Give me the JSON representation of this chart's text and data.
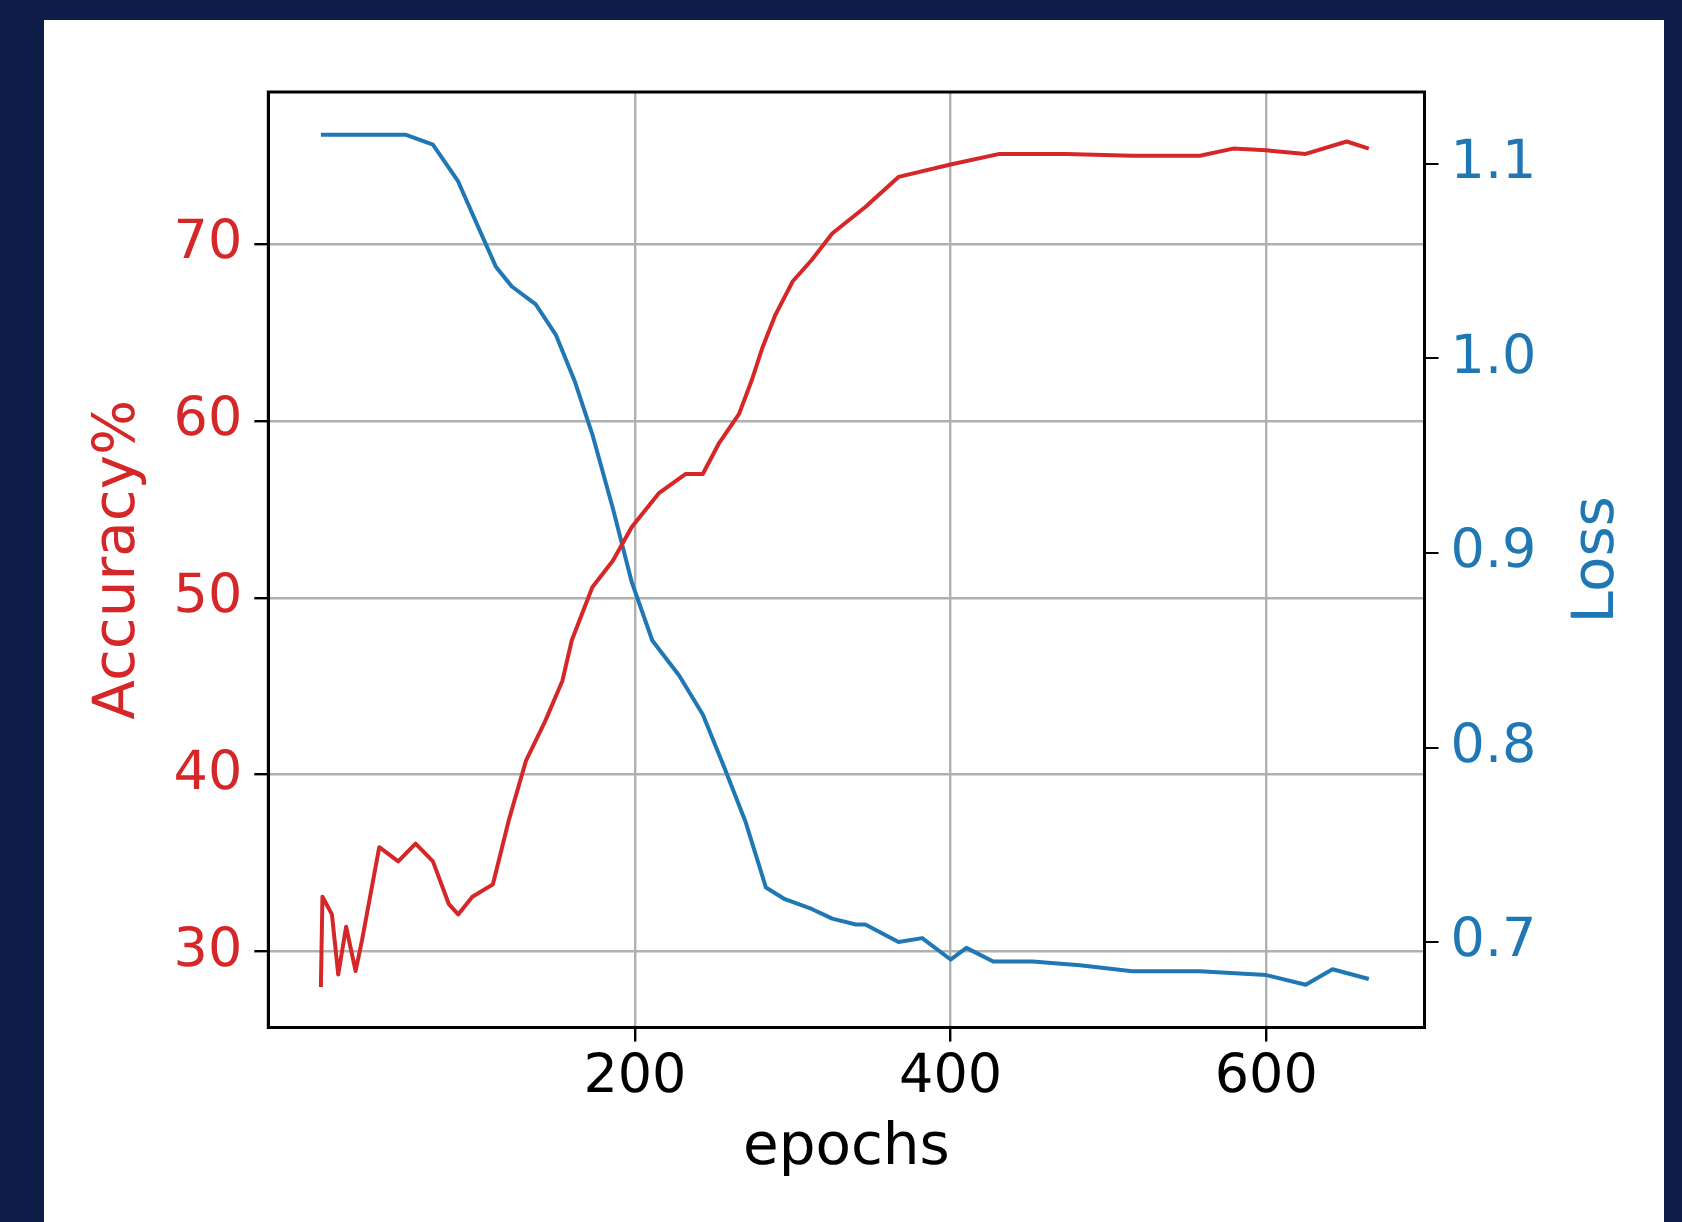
{
  "chart_data": {
    "type": "line",
    "xlabel": "epochs",
    "ylabel": "Accuracy%",
    "y2label": "Loss",
    "xlim": [
      -32.3,
      700.3
    ],
    "xticks": [
      200,
      400,
      600
    ],
    "ylim": [
      25.7,
      78.6
    ],
    "yticks": [
      30,
      40,
      50,
      60,
      70
    ],
    "y2lim": [
      0.656,
      1.137
    ],
    "y2ticks": [
      0.7,
      0.8,
      0.9,
      {
        "value": 1,
        "label": "1.0"
      },
      1.1
    ],
    "grid": true,
    "marker": "none",
    "line_style": "solid",
    "series": [
      {
        "color": "#d62728",
        "axis": "y",
        "x": [
          1,
          2,
          8,
          12,
          17,
          23,
          27,
          38,
          50,
          61,
          72,
          82,
          88,
          97,
          110,
          120,
          131,
          143,
          154,
          160,
          173,
          186,
          198,
          215,
          232,
          243,
          253,
          266,
          274,
          281,
          289,
          300,
          312,
          325,
          346,
          367,
          400,
          431,
          473,
          515,
          558,
          579,
          600,
          625,
          651,
          665
        ],
        "values": [
          28.0,
          33.1,
          32.1,
          28.7,
          31.4,
          28.9,
          30.6,
          35.9,
          35.1,
          36.1,
          35.1,
          32.7,
          32.1,
          33.1,
          33.8,
          37.4,
          40.8,
          43.0,
          45.3,
          47.6,
          50.6,
          52.1,
          54.0,
          55.9,
          57.0,
          57.0,
          58.7,
          60.4,
          62.3,
          64.2,
          66.0,
          67.9,
          69.1,
          70.6,
          72.1,
          73.8,
          74.5,
          75.1,
          75.1,
          75.0,
          75.0,
          75.4,
          75.3,
          75.1,
          75.8,
          75.4
        ]
      },
      {
        "color": "#1f77b4",
        "axis": "y2",
        "x": [
          1,
          55,
          72,
          88,
          101,
          112,
          122,
          137,
          150,
          162,
          173,
          186,
          198,
          211,
          228,
          243,
          257,
          270,
          283,
          295,
          312,
          325,
          340,
          346,
          367,
          382,
          400,
          410,
          427,
          452,
          482,
          515,
          558,
          600,
          625,
          642,
          665
        ],
        "values": [
          1.115,
          1.115,
          1.11,
          1.091,
          1.067,
          1.047,
          1.037,
          1.028,
          1.012,
          0.988,
          0.961,
          0.923,
          0.885,
          0.855,
          0.837,
          0.817,
          0.789,
          0.762,
          0.728,
          0.722,
          0.717,
          0.712,
          0.709,
          0.709,
          0.7,
          0.702,
          0.691,
          0.697,
          0.69,
          0.69,
          0.688,
          0.685,
          0.685,
          0.683,
          0.678,
          0.686,
          0.681
        ]
      }
    ]
  }
}
